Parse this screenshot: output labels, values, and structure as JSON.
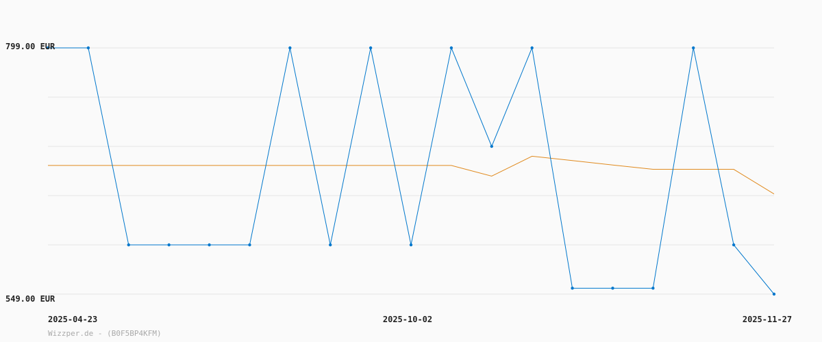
{
  "chart_data": {
    "type": "line",
    "ylim": [
      549,
      799
    ],
    "y_tick_labels": [
      "799.00 EUR",
      "549.00 EUR"
    ],
    "x_tick_labels": [
      {
        "index": 0,
        "label": "2025-04-23"
      },
      {
        "index": 9,
        "label": "2025-10-02"
      },
      {
        "index": 18,
        "label": "2025-11-27"
      }
    ],
    "grid": true,
    "series": [
      {
        "color": "#0077cc",
        "markers": true,
        "values": [
          799,
          799,
          599,
          599,
          599,
          599,
          799,
          599,
          799,
          599,
          799,
          699,
          799,
          555,
          555,
          555,
          799,
          599,
          549
        ]
      },
      {
        "color": "#e08a1e",
        "markers": false,
        "values": [
          679.6,
          679.6,
          679.6,
          679.6,
          679.6,
          679.6,
          679.6,
          679.6,
          679.6,
          679.6,
          679.6,
          668.8,
          689.0,
          684.6,
          680.1,
          675.7,
          675.7,
          675.7,
          650.7
        ]
      }
    ]
  },
  "footer": "Wizzper.de - (B0F5BP4KFM)"
}
